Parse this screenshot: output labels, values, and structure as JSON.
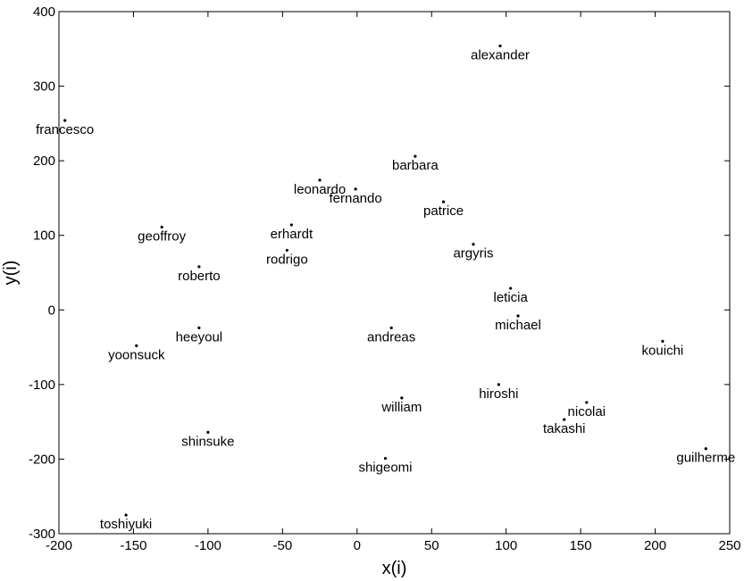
{
  "chart_data": {
    "type": "scatter",
    "title": "",
    "xlabel": "x(i)",
    "ylabel": "y(i)",
    "xlim": [
      -200,
      250
    ],
    "ylim": [
      -300,
      400
    ],
    "xticks": [
      -200,
      -150,
      -100,
      -50,
      0,
      50,
      100,
      150,
      200,
      250
    ],
    "yticks": [
      -300,
      -200,
      -100,
      0,
      100,
      200,
      300,
      400
    ],
    "grid": false,
    "marker_color": "#000000",
    "points": [
      {
        "label": "alexander",
        "x": 96,
        "y": 354
      },
      {
        "label": "francesco",
        "x": -196,
        "y": 254
      },
      {
        "label": "barbara",
        "x": 39,
        "y": 206
      },
      {
        "label": "leonardo",
        "x": -25,
        "y": 174
      },
      {
        "label": "fernando",
        "x": -1,
        "y": 162
      },
      {
        "label": "patrice",
        "x": 58,
        "y": 145
      },
      {
        "label": "erhardt",
        "x": -44,
        "y": 114
      },
      {
        "label": "geoffroy",
        "x": -131,
        "y": 111
      },
      {
        "label": "argyris",
        "x": 78,
        "y": 88
      },
      {
        "label": "rodrigo",
        "x": -47,
        "y": 80
      },
      {
        "label": "roberto",
        "x": -106,
        "y": 58
      },
      {
        "label": "leticia",
        "x": 103,
        "y": 29
      },
      {
        "label": "michael",
        "x": 108,
        "y": -8
      },
      {
        "label": "heeyoul",
        "x": -106,
        "y": -24
      },
      {
        "label": "andreas",
        "x": 23,
        "y": -24
      },
      {
        "label": "kouichi",
        "x": 205,
        "y": -42
      },
      {
        "label": "yoonsuck",
        "x": -148,
        "y": -48
      },
      {
        "label": "hiroshi",
        "x": 95,
        "y": -100
      },
      {
        "label": "william",
        "x": 30,
        "y": -118
      },
      {
        "label": "nicolai",
        "x": 154,
        "y": -124
      },
      {
        "label": "takashi",
        "x": 139,
        "y": -147
      },
      {
        "label": "shinsuke",
        "x": -100,
        "y": -164
      },
      {
        "label": "guilherme",
        "x": 234,
        "y": -186
      },
      {
        "label": "shigeomi",
        "x": 19,
        "y": -199
      },
      {
        "label": "toshiyuki",
        "x": -155,
        "y": -275
      }
    ]
  }
}
